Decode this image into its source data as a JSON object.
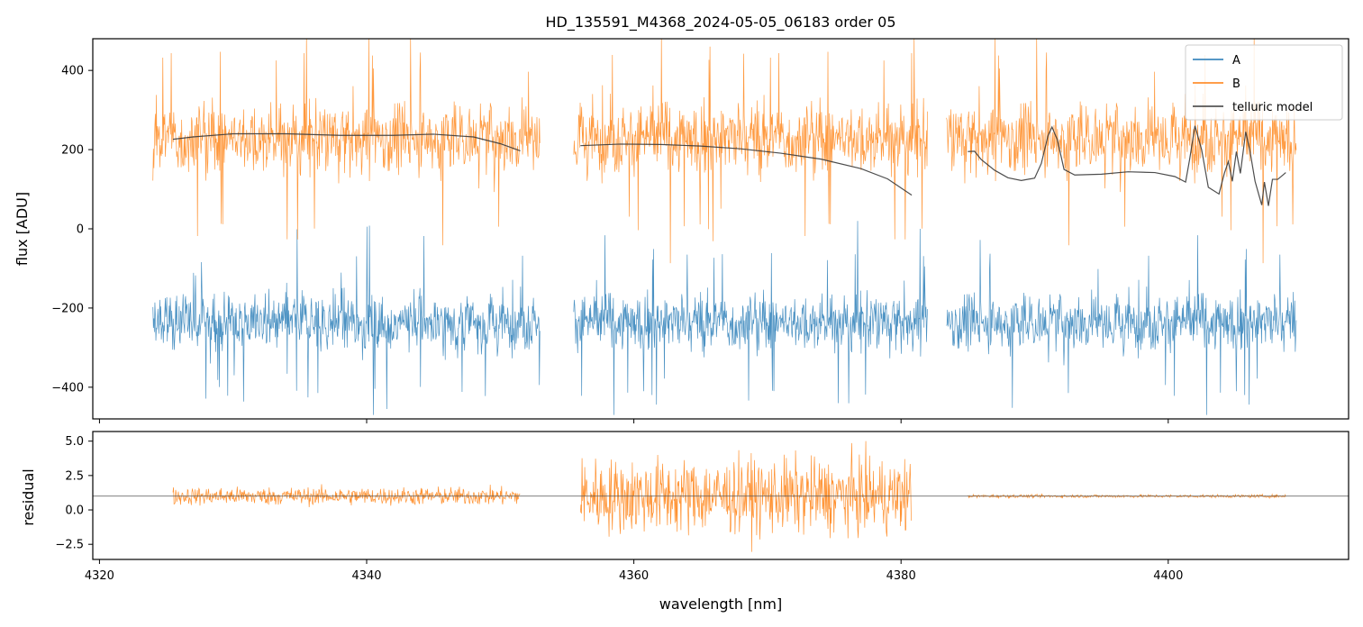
{
  "chart_data": [
    {
      "type": "line",
      "title": "HD_135591_M4368_2024-05-05_06183  order 05",
      "xlabel": "",
      "ylabel": "flux [ADU]",
      "xlim": [
        4319.5,
        4413.5
      ],
      "ylim": [
        -480,
        480
      ],
      "yticks": [
        -400,
        -200,
        0,
        200,
        400
      ],
      "ytick_labels": [
        "−400",
        "−200",
        "0",
        "200",
        "400"
      ],
      "xticks": [
        4320,
        4340,
        4360,
        4380,
        4400
      ],
      "segments": [
        [
          4324.0,
          4353.0
        ],
        [
          4355.5,
          4382.0
        ],
        [
          4383.4,
          4409.6
        ]
      ],
      "series": [
        {
          "name": "A",
          "color": "#1f77b4",
          "center": -235,
          "noise": 80,
          "spike_up_to": 20,
          "spike_down_to": -470
        },
        {
          "name": "B",
          "color": "#ff7f0e",
          "center": 230,
          "noise": 100,
          "spike_up_to": 480,
          "spike_down_to": -370
        },
        {
          "name": "telluric model",
          "color": "#3a3a3a",
          "x": [
            4325.5,
            4327,
            4330,
            4334,
            4338,
            4342,
            4345,
            4348,
            4350,
            4351.5,
            null,
            4356,
            4359,
            4362,
            4365,
            4368,
            4371,
            4374,
            4377,
            4379,
            4380.8,
            null,
            4385,
            4385.5,
            4386,
            4387,
            4388,
            4389,
            4390,
            4390.5,
            4391,
            4391.3,
            4391.7,
            4392.2,
            4393,
            4395,
            4397,
            4399,
            4400.5,
            4401.3,
            4401.6,
            4402.0,
            4402.5,
            4403,
            4403.8,
            4404.2,
            4404.5,
            4404.8,
            4405.1,
            4405.4,
            4405.8,
            4406.1,
            4406.5,
            4407,
            4407.2,
            4407.5,
            4407.8,
            4408.2,
            4408.8
          ],
          "y": [
            226,
            232,
            240,
            240,
            236,
            236,
            239,
            232,
            215,
            197,
            null,
            210,
            214,
            213,
            209,
            202,
            191,
            176,
            152,
            126,
            85,
            null,
            195,
            196,
            175,
            148,
            129,
            122,
            128,
            165,
            235,
            257,
            225,
            150,
            136,
            138,
            144,
            142,
            132,
            118,
            175,
            260,
            200,
            105,
            88,
            140,
            170,
            120,
            195,
            140,
            245,
            200,
            120,
            60,
            118,
            58,
            125,
            125,
            142
          ]
        }
      ],
      "legend": {
        "position": "top-right",
        "entries": [
          "A",
          "B",
          "telluric model"
        ]
      }
    },
    {
      "type": "line",
      "title": "",
      "xlabel": "wavelength [nm]",
      "ylabel": "residual",
      "xlim": [
        4319.5,
        4413.5
      ],
      "ylim": [
        -3.6,
        5.7
      ],
      "yticks": [
        -2.5,
        0.0,
        2.5,
        5.0
      ],
      "ytick_labels": [
        "−2.5",
        "0.0",
        "2.5",
        "5.0"
      ],
      "xticks": [
        4320,
        4340,
        4360,
        4380,
        4400
      ],
      "xtick_labels": [
        "4320",
        "4340",
        "4360",
        "4380",
        "4400"
      ],
      "reference_line": 1.0,
      "series": [
        {
          "name": "residual",
          "color": "#ff7f0e",
          "segments": [
            {
              "x": [
                4325.5,
                4351.5
              ],
              "center": 1.0,
              "noise": 0.45
            },
            {
              "x": [
                4356,
                4380.8
              ],
              "center": 1.0,
              "noise": 1.9
            },
            {
              "x": [
                4385,
                4408.8
              ],
              "center": 1.0,
              "noise": 0.08
            }
          ]
        }
      ]
    }
  ]
}
